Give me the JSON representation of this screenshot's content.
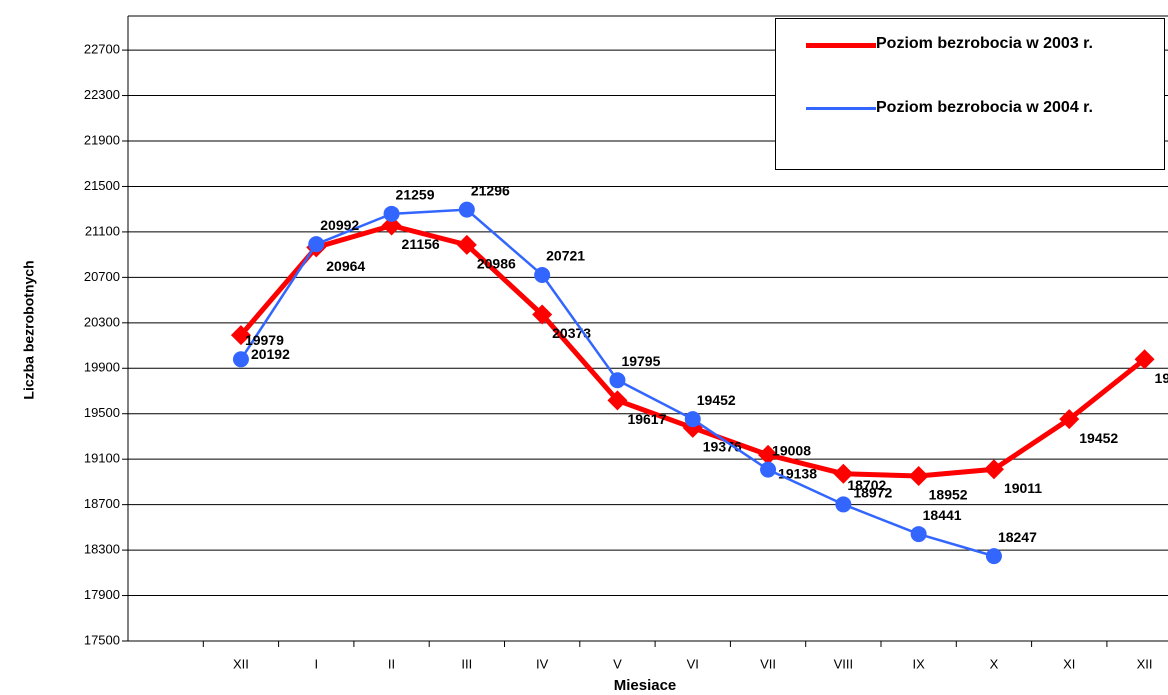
{
  "chart_data": {
    "type": "line",
    "y_label": "Liczba bezrobotnych",
    "x_label": "Miesiace",
    "categories": [
      null,
      "XII",
      "I",
      "II",
      "III",
      "IV",
      "V",
      "VI",
      "VII",
      "VIII",
      "IX",
      "X",
      "XI",
      "XII"
    ],
    "series": [
      {
        "name": "Poziom  bezrobocia w 2003 r.",
        "color": "#ff0000",
        "marker": "diamond",
        "values": [
          null,
          20192,
          20964,
          21156,
          20986,
          20373,
          19617,
          19376,
          19138,
          18972,
          18952,
          19011,
          19452,
          19979
        ]
      },
      {
        "name": "Poziom  bezrobocia w 2004 r.",
        "color": "#3366ff",
        "marker": "circle",
        "values": [
          null,
          19979,
          20992,
          21259,
          21296,
          20721,
          19795,
          19452,
          19008,
          18702,
          18441,
          18247,
          null,
          null
        ]
      }
    ],
    "ylim": [
      17500,
      23000
    ],
    "yticks": [
      17500,
      17900,
      18300,
      18700,
      19100,
      19500,
      19900,
      20300,
      20700,
      21100,
      21500,
      21900,
      22300,
      22700
    ],
    "grid": true,
    "legend": "top-right"
  }
}
